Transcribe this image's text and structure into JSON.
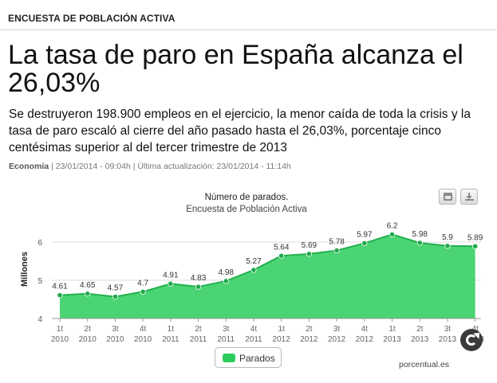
{
  "header": {
    "section_title": "ENCUESTA DE POBLACIÓN ACTIVA"
  },
  "article": {
    "headline": "La tasa de paro en España alcanza el 26,03%",
    "subheadline": "Se destruyeron 198.900 empleos en el ejercicio, la menor caída de toda la crisis y la tasa de paro escaló al cierre del año pasado hasta el 26,03%, porcentaje cinco centésimas superior al del tercer trimestre de 2013",
    "category": "Economía",
    "published": "| 23/01/2014 - 09:04h",
    "separator": "|",
    "updated": "Última actualización: 23/01/2014 - 11:14h"
  },
  "chart_toolbar": {
    "print_icon": "print-icon",
    "download_icon": "download-icon"
  },
  "chart_data": {
    "type": "area",
    "title": "Número de parados.",
    "subtitle": "Encuesta de Población Activa",
    "ylabel": "Millones",
    "ylim": [
      4,
      6.5
    ],
    "yticks": [
      4,
      5,
      6
    ],
    "grid": "horizontal",
    "legend_position": "bottom-center",
    "categories": [
      [
        "1t",
        "2010"
      ],
      [
        "2t",
        "2010"
      ],
      [
        "3t",
        "2010"
      ],
      [
        "4t",
        "2010"
      ],
      [
        "1t",
        "2011"
      ],
      [
        "2t",
        "2011"
      ],
      [
        "3t",
        "2011"
      ],
      [
        "4t",
        "2011"
      ],
      [
        "1t",
        "2012"
      ],
      [
        "2t",
        "2012"
      ],
      [
        "3t",
        "2012"
      ],
      [
        "4t",
        "2012"
      ],
      [
        "1t",
        "2013"
      ],
      [
        "2t",
        "2013"
      ],
      [
        "3t",
        "2013"
      ],
      [
        "4t",
        "2013"
      ]
    ],
    "series": [
      {
        "name": "Parados",
        "color": "#2ccc5c",
        "values": [
          4.61,
          4.65,
          4.57,
          4.7,
          4.91,
          4.83,
          4.98,
          5.27,
          5.64,
          5.69,
          5.78,
          5.97,
          6.2,
          5.98,
          5.9,
          5.89
        ]
      }
    ],
    "credit": "porcentual.es"
  }
}
